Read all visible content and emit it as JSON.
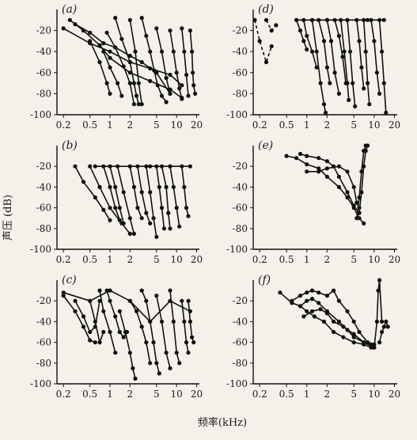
{
  "figure": {
    "ylabel": "声压 (dB)",
    "xlabel": "频率(kHz)"
  },
  "chart_data": [
    {
      "panel": "(a)",
      "type": "line",
      "xscale": "log",
      "ylim": [
        -100,
        0
      ],
      "xlim": [
        0.16,
        22
      ],
      "xticks": [
        "0.2",
        "0.5",
        "1",
        "2",
        "5",
        "10",
        "20"
      ],
      "yticks": [
        "-20",
        "-40",
        "-60",
        "-80",
        "-100"
      ],
      "series": [
        {
          "x": [
            0.25,
            0.4,
            0.7,
            1.0,
            2.0,
            4.0,
            8.0,
            12.0
          ],
          "y": [
            -10,
            -20,
            -34,
            -46,
            -60,
            -68,
            -76,
            -84
          ]
        },
        {
          "x": [
            0.2,
            0.5,
            1.0,
            2.0,
            4.0,
            8.0,
            12.0
          ],
          "y": [
            -18,
            -32,
            -40,
            -50,
            -56,
            -62,
            -72
          ]
        },
        {
          "x": [
            0.3,
            0.5,
            0.8,
            1.2,
            2.0,
            3.0,
            5.0,
            8.0
          ],
          "y": [
            -14,
            -22,
            -32,
            -36,
            -44,
            -50,
            -60,
            -80
          ]
        },
        {
          "x": [
            0.5,
            0.7,
            0.9,
            1.0
          ],
          "y": [
            -30,
            -50,
            -70,
            -80
          ]
        },
        {
          "x": [
            0.8,
            1.0,
            1.3,
            1.5
          ],
          "y": [
            -40,
            -55,
            -70,
            -82
          ]
        },
        {
          "x": [
            0.9,
            1.2,
            1.6,
            2.0,
            2.3
          ],
          "y": [
            -22,
            -36,
            -54,
            -70,
            -90
          ]
        },
        {
          "x": [
            1.2,
            1.5,
            2.0,
            2.3,
            2.5,
            2.7
          ],
          "y": [
            -8,
            -28,
            -50,
            -70,
            -82,
            -90
          ]
        },
        {
          "x": [
            2.0,
            2.4,
            2.7,
            3.0
          ],
          "y": [
            -10,
            -40,
            -70,
            -90
          ]
        },
        {
          "x": [
            3.0,
            3.5,
            4.0,
            4.6,
            5.2,
            6.0,
            7.0
          ],
          "y": [
            -8,
            -25,
            -40,
            -58,
            -72,
            -82,
            -88
          ]
        },
        {
          "x": [
            5.0,
            6.0,
            7.0,
            8.0
          ],
          "y": [
            -18,
            -40,
            -65,
            -80
          ]
        },
        {
          "x": [
            8.0,
            9.0,
            10.0,
            11.0,
            12.0
          ],
          "y": [
            -20,
            -40,
            -60,
            -75,
            -85
          ]
        },
        {
          "x": [
            12.0,
            13.0,
            14.0,
            15.0
          ],
          "y": [
            -18,
            -40,
            -62,
            -82
          ]
        },
        {
          "x": [
            16.0,
            17.0,
            17.5,
            18.0,
            19.0
          ],
          "y": [
            -20,
            -40,
            -60,
            -72,
            -80
          ]
        }
      ]
    },
    {
      "panel": "(d)",
      "type": "line",
      "xscale": "log",
      "ylim": [
        -100,
        0
      ],
      "xlim": [
        0.16,
        22
      ],
      "xticks": [
        "0.2",
        "0.5",
        "1",
        "2",
        "5",
        "10",
        "20"
      ],
      "yticks": [
        "-20",
        "-40",
        "-60",
        "-80",
        "-100"
      ],
      "series": [
        {
          "x": [
            0.15,
            0.2,
            0.25,
            0.3
          ],
          "y": [
            -10,
            -30,
            -50,
            -35
          ],
          "dashed": true
        },
        {
          "x": [
            0.25,
            0.3,
            0.35
          ],
          "y": [
            -10,
            -20,
            -15
          ],
          "dashed": true
        },
        {
          "x": [
            0.7,
            1.2,
            2.0,
            4.0,
            8.0,
            14.0
          ],
          "y": [
            -10,
            -10,
            -10,
            -10,
            -10,
            -10
          ]
        },
        {
          "x": [
            0.7,
            0.8,
            0.9,
            1.0
          ],
          "y": [
            -10,
            -20,
            -30,
            -38
          ]
        },
        {
          "x": [
            0.9,
            1.0,
            1.2,
            1.4
          ],
          "y": [
            -10,
            -25,
            -40,
            -55
          ]
        },
        {
          "x": [
            1.2,
            1.4,
            1.6,
            1.8,
            1.9
          ],
          "y": [
            -10,
            -40,
            -70,
            -90,
            -98
          ]
        },
        {
          "x": [
            1.5,
            1.8,
            2.0,
            2.2
          ],
          "y": [
            -10,
            -30,
            -55,
            -70
          ]
        },
        {
          "x": [
            2.0,
            2.3,
            2.6,
            3.0
          ],
          "y": [
            -10,
            -30,
            -60,
            -80
          ]
        },
        {
          "x": [
            2.6,
            3.0,
            3.4,
            3.8
          ],
          "y": [
            -10,
            -25,
            -45,
            -70
          ]
        },
        {
          "x": [
            3.2,
            3.6,
            4.0,
            4.2
          ],
          "y": [
            -10,
            -40,
            -70,
            -86
          ]
        },
        {
          "x": [
            4.0,
            4.4,
            4.8,
            5.2
          ],
          "y": [
            -10,
            -40,
            -70,
            -92
          ]
        },
        {
          "x": [
            5.5,
            6.0,
            6.5,
            7.0
          ],
          "y": [
            -10,
            -30,
            -55,
            -75
          ]
        },
        {
          "x": [
            7.0,
            7.5,
            8.0,
            8.5
          ],
          "y": [
            -10,
            -40,
            -70,
            -90
          ]
        },
        {
          "x": [
            9.0,
            10.0,
            11.0,
            12.0
          ],
          "y": [
            -10,
            -30,
            -60,
            -80
          ]
        },
        {
          "x": [
            12.0,
            13.0,
            14.0,
            15.0
          ],
          "y": [
            -10,
            -40,
            -70,
            -98
          ]
        }
      ]
    },
    {
      "panel": "(b)",
      "type": "line",
      "xscale": "log",
      "ylim": [
        -100,
        0
      ],
      "xlim": [
        0.16,
        22
      ],
      "xticks": [
        "0.2",
        "0.5",
        "1",
        "2",
        "5",
        "10",
        "20"
      ],
      "yticks": [
        "-20",
        "-40",
        "-60",
        "-80",
        "-100"
      ],
      "series": [
        {
          "x": [
            0.6,
            1.0,
            2.0,
            4.0,
            8.0,
            16.0
          ],
          "y": [
            -20,
            -20,
            -20,
            -20,
            -20,
            -20
          ]
        },
        {
          "x": [
            0.3,
            0.4,
            0.6,
            0.8,
            1.0
          ],
          "y": [
            -20,
            -35,
            -50,
            -62,
            -72
          ]
        },
        {
          "x": [
            0.5,
            0.7,
            1.0,
            1.5,
            2.0
          ],
          "y": [
            -20,
            -40,
            -60,
            -75,
            -85
          ]
        },
        {
          "x": [
            0.8,
            1.0,
            1.2,
            1.4
          ],
          "y": [
            -20,
            -40,
            -60,
            -72
          ]
        },
        {
          "x": [
            1.0,
            1.2,
            1.4,
            1.6
          ],
          "y": [
            -20,
            -40,
            -60,
            -75
          ]
        },
        {
          "x": [
            1.3,
            1.6,
            2.0,
            2.3
          ],
          "y": [
            -20,
            -45,
            -70,
            -85
          ]
        },
        {
          "x": [
            2.0,
            2.3,
            2.6,
            3.0
          ],
          "y": [
            -20,
            -40,
            -60,
            -70
          ]
        },
        {
          "x": [
            2.6,
            3.0,
            3.5,
            4.0
          ],
          "y": [
            -20,
            -45,
            -65,
            -75
          ]
        },
        {
          "x": [
            3.5,
            4.0,
            4.5,
            5.0
          ],
          "y": [
            -20,
            -45,
            -70,
            -88
          ]
        },
        {
          "x": [
            5.0,
            5.5,
            6.0,
            6.5
          ],
          "y": [
            -20,
            -40,
            -60,
            -80
          ]
        },
        {
          "x": [
            6.0,
            7.0,
            7.5,
            8.0
          ],
          "y": [
            -20,
            -40,
            -65,
            -80
          ]
        },
        {
          "x": [
            8.0,
            9.0,
            10.0,
            11.0
          ],
          "y": [
            -20,
            -40,
            -60,
            -78
          ]
        },
        {
          "x": [
            12.0,
            13.0,
            14.0,
            15.0
          ],
          "y": [
            -20,
            -40,
            -60,
            -68
          ]
        }
      ]
    },
    {
      "panel": "(e)",
      "type": "line",
      "xscale": "log",
      "ylim": [
        -100,
        0
      ],
      "xlim": [
        0.16,
        22
      ],
      "xticks": [
        "0.2",
        "0.5",
        "1",
        "2",
        "5",
        "10",
        "20"
      ],
      "yticks": [
        "-20",
        "-40",
        "-60",
        "-80",
        "-100"
      ],
      "series": [
        {
          "x": [
            0.5,
            0.7,
            1.0,
            1.5,
            2.0,
            3.0,
            4.0,
            5.0,
            6.0,
            7.0
          ],
          "y": [
            -10,
            -12,
            -18,
            -22,
            -30,
            -40,
            -50,
            -60,
            -70,
            -75
          ]
        },
        {
          "x": [
            0.8,
            1.0,
            1.5,
            2.0,
            2.5,
            3.0,
            4.0,
            5.0,
            6.0
          ],
          "y": [
            -8,
            -10,
            -12,
            -15,
            -20,
            -30,
            -45,
            -58,
            -65
          ]
        },
        {
          "x": [
            1.0,
            1.5,
            2.0,
            3.0,
            4.0,
            5.0,
            5.5,
            6.0
          ],
          "y": [
            -25,
            -25,
            -22,
            -20,
            -25,
            -40,
            -55,
            -60
          ]
        },
        {
          "x": [
            5.5,
            6.0,
            6.5,
            7.0,
            7.5
          ],
          "y": [
            -70,
            -50,
            -25,
            -5,
            0
          ]
        },
        {
          "x": [
            6.0,
            6.5,
            7.0,
            7.5,
            8.0
          ],
          "y": [
            -65,
            -45,
            -20,
            -5,
            0
          ]
        }
      ]
    },
    {
      "panel": "(c)",
      "type": "line",
      "xscale": "log",
      "ylim": [
        -100,
        0
      ],
      "xlim": [
        0.16,
        22
      ],
      "xticks": [
        "0.2",
        "0.5",
        "1",
        "2",
        "5",
        "10",
        "20"
      ],
      "yticks": [
        "-20",
        "-40",
        "-60",
        "-80",
        "-100"
      ],
      "series": [
        {
          "x": [
            0.2,
            0.5,
            1.0,
            2.0,
            4.0,
            8.0,
            16.0
          ],
          "y": [
            -12,
            -20,
            -10,
            -20,
            -40,
            -20,
            -30
          ]
        },
        {
          "x": [
            0.2,
            0.3,
            0.4,
            0.5,
            0.6
          ],
          "y": [
            -15,
            -30,
            -45,
            -58,
            -60
          ]
        },
        {
          "x": [
            0.3,
            0.4,
            0.5,
            0.6,
            0.7
          ],
          "y": [
            -20,
            -35,
            -50,
            -45,
            -20
          ]
        },
        {
          "x": [
            0.5,
            0.6,
            0.7,
            0.8
          ],
          "y": [
            -20,
            -40,
            -60,
            -50
          ]
        },
        {
          "x": [
            0.7,
            0.8,
            1.0,
            1.2
          ],
          "y": [
            -10,
            -30,
            -50,
            -70
          ]
        },
        {
          "x": [
            0.9,
            1.0,
            1.2,
            1.4,
            1.6,
            1.8
          ],
          "y": [
            -10,
            -20,
            -35,
            -50,
            -55,
            -50
          ]
        },
        {
          "x": [
            1.4,
            1.7,
            2.0,
            2.2,
            2.4
          ],
          "y": [
            -30,
            -50,
            -70,
            -85,
            -95
          ]
        },
        {
          "x": [
            2.0,
            2.5,
            3.0,
            3.5,
            4.0
          ],
          "y": [
            -20,
            -30,
            -45,
            -60,
            -80
          ]
        },
        {
          "x": [
            3.0,
            3.5,
            4.0,
            4.5,
            5.0,
            5.5
          ],
          "y": [
            -10,
            -20,
            -40,
            -60,
            -80,
            -90
          ]
        },
        {
          "x": [
            5.0,
            6.0,
            7.0,
            8.0
          ],
          "y": [
            -15,
            -40,
            -70,
            -85
          ]
        },
        {
          "x": [
            8.0,
            9.0,
            10.0,
            11.0
          ],
          "y": [
            -10,
            -40,
            -70,
            -80
          ]
        },
        {
          "x": [
            12.0,
            13.0,
            14.0,
            15.0
          ],
          "y": [
            -20,
            -40,
            -60,
            -70
          ]
        },
        {
          "x": [
            15.0,
            16.0,
            17.0,
            18.0
          ],
          "y": [
            -20,
            -40,
            -55,
            -60
          ]
        }
      ]
    },
    {
      "panel": "(f)",
      "type": "line",
      "xscale": "log",
      "ylim": [
        -100,
        0
      ],
      "xlim": [
        0.16,
        22
      ],
      "xticks": [
        "0.2",
        "0.5",
        "1",
        "2",
        "5",
        "10",
        "20"
      ],
      "yticks": [
        "-20",
        "-40",
        "-60",
        "-80",
        "-100"
      ],
      "series": [
        {
          "x": [
            0.4,
            0.6,
            0.8,
            1.0,
            1.3,
            1.8,
            2.5,
            3.5,
            5.0,
            7.0,
            9.0
          ],
          "y": [
            -12,
            -22,
            -25,
            -30,
            -35,
            -40,
            -50,
            -55,
            -60,
            -62,
            -65
          ]
        },
        {
          "x": [
            0.6,
            0.8,
            1.0,
            1.2,
            1.5,
            2.0,
            2.5,
            3.0,
            4.0,
            5.0,
            6.0,
            8.0,
            10.0
          ],
          "y": [
            -20,
            -15,
            -12,
            -10,
            -12,
            -15,
            -10,
            -20,
            -30,
            -40,
            -50,
            -60,
            -62
          ]
        },
        {
          "x": [
            0.8,
            1.0,
            1.2,
            1.5,
            2.0,
            3.0,
            4.0,
            5.0,
            7.0,
            9.0
          ],
          "y": [
            -25,
            -20,
            -18,
            -22,
            -30,
            -40,
            -48,
            -55,
            -60,
            -62
          ]
        },
        {
          "x": [
            0.9,
            1.2,
            1.6,
            2.0,
            2.5,
            3.5,
            5.0,
            7.0,
            10.0
          ],
          "y": [
            -35,
            -30,
            -28,
            -32,
            -40,
            -45,
            -52,
            -60,
            -65
          ]
        },
        {
          "x": [
            10.0,
            11.0,
            11.5,
            12.0,
            13.0
          ],
          "y": [
            -65,
            -40,
            -10,
            0,
            -40
          ]
        },
        {
          "x": [
            12.0,
            13.0,
            14.0,
            15.0,
            16.0
          ],
          "y": [
            -60,
            -50,
            -45,
            -40,
            -45
          ]
        }
      ]
    }
  ]
}
